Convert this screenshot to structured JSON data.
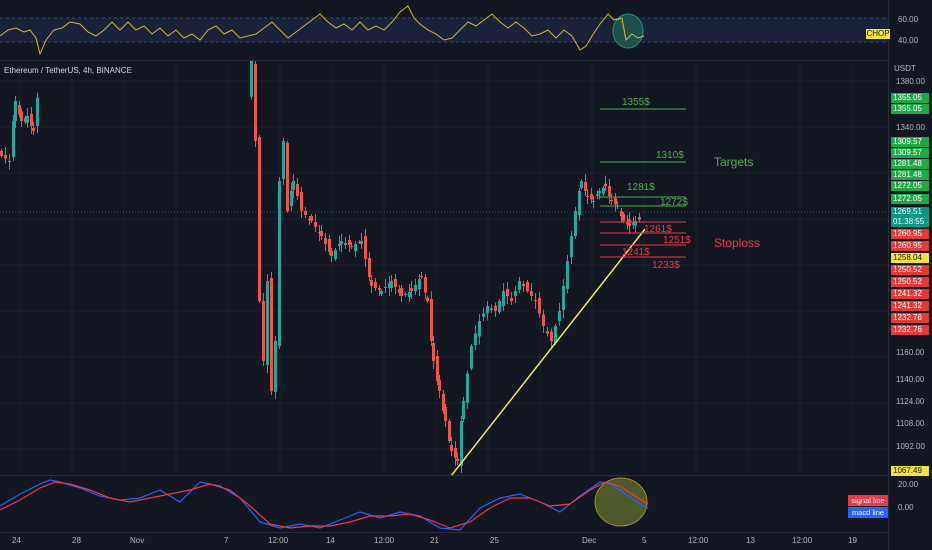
{
  "chart_title": "Ethereum / TetherUS, 4h, BINANCE",
  "currency": "USDT",
  "indicator_top": {
    "name": "CHOP",
    "ticks": [
      "60.00",
      "40.00"
    ]
  },
  "indicator_bottom": {
    "ticks": [
      "20.00",
      "0.00"
    ],
    "legend": [
      "signal line",
      "macd line"
    ]
  },
  "price_ticks": [
    "1380.00",
    "1340.00",
    "1160.00",
    "1140.00",
    "1124.00",
    "1108.00",
    "1092.00"
  ],
  "price_tags": {
    "green": [
      "1355.05",
      "1355.05",
      "1309.57",
      "1309.57",
      "1281.48",
      "1281.48",
      "1272.05",
      "1272.05"
    ],
    "current": [
      "1269.51",
      "01:38:55"
    ],
    "red_upper": [
      "1260.95",
      "1260.95"
    ],
    "yellow": "1258.04",
    "red_lower": [
      "1250.52",
      "1250.52",
      "1241.32",
      "1241.32",
      "1232.76",
      "1232.76"
    ],
    "low": "1067.49"
  },
  "annotations": {
    "targets_label": "Targets",
    "stoploss_label": "Stoploss",
    "targets": [
      "1355$",
      "1310$",
      "1281$",
      "1272$"
    ],
    "stops": [
      "1261$",
      "1251$",
      "1241$",
      "1233$"
    ]
  },
  "time_axis": [
    "24",
    "28",
    "Nov",
    "7",
    "12:00",
    "14",
    "12:00",
    "21",
    "25",
    "Dec",
    "5",
    "12:00",
    "13",
    "12:00",
    "19"
  ],
  "colors": {
    "up": "#26a69a",
    "down": "#ef5350",
    "trend": "#f5e663",
    "target": "#4caf50",
    "stop": "#f23645",
    "macd": "#2962ff",
    "signal": "#f23645"
  }
}
